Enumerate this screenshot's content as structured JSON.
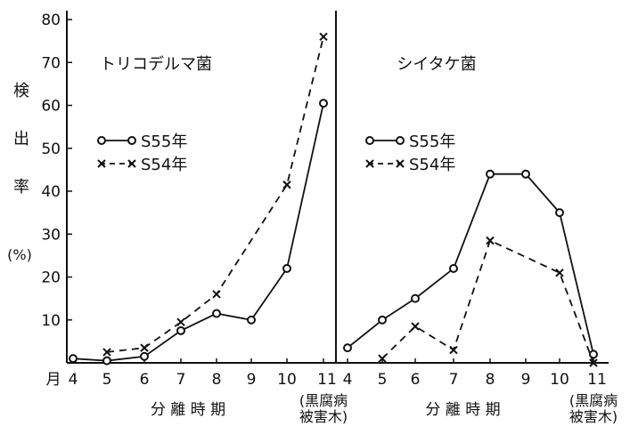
{
  "chart_data": [
    {
      "type": "line",
      "title": "トリコデルマ菌",
      "categories": [
        "4",
        "5",
        "6",
        "7",
        "8",
        "9",
        "10",
        "11"
      ],
      "last_category_note": "(黒腐病被害木)",
      "xlabel": "分 離 時 期",
      "x_prefix": "月",
      "ylabel_chars": [
        "検",
        "出",
        "率"
      ],
      "ylabel_unit": "(%)",
      "ylim": [
        0,
        80
      ],
      "yticks": [
        10,
        20,
        30,
        40,
        50,
        60,
        70,
        80
      ],
      "legend_position": "left",
      "series": [
        {
          "name": "S55年",
          "style": "solid-circle",
          "values": [
            1,
            0.5,
            1.5,
            7.5,
            11.5,
            10,
            22,
            60.5
          ]
        },
        {
          "name": "S54年",
          "style": "dashed-cross",
          "values": [
            null,
            2.5,
            3.5,
            9.5,
            16,
            null,
            41.5,
            76
          ]
        }
      ]
    },
    {
      "type": "line",
      "title": "シイタケ菌",
      "categories": [
        "4",
        "5",
        "6",
        "7",
        "8",
        "9",
        "10",
        "11"
      ],
      "last_category_note": "(黒腐病被害木)",
      "xlabel": "分 離 時 期",
      "ylim": [
        0,
        80
      ],
      "legend_position": "left",
      "series": [
        {
          "name": "S55年",
          "style": "solid-circle",
          "values": [
            3.5,
            10,
            15,
            22,
            44,
            44,
            35,
            2
          ]
        },
        {
          "name": "S54年",
          "style": "dashed-cross",
          "values": [
            null,
            1,
            8.5,
            3,
            28.5,
            null,
            21,
            0
          ]
        }
      ]
    }
  ]
}
